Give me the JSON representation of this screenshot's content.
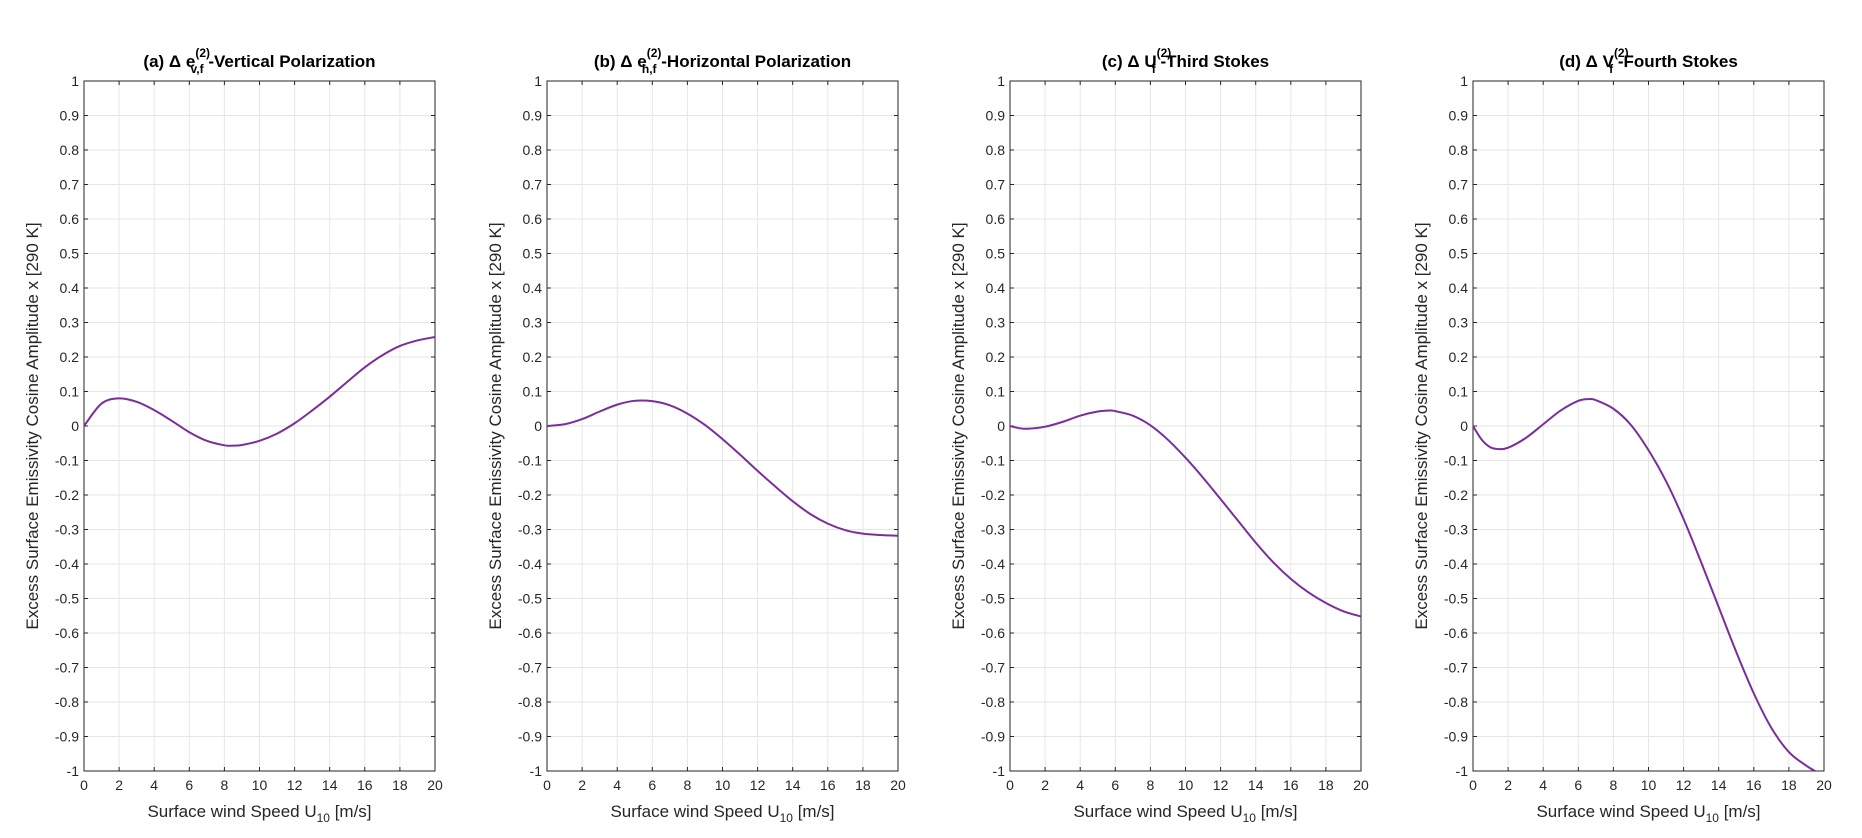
{
  "chart_data": [
    {
      "type": "line",
      "title": {
        "prefix": "(a) Δ e",
        "sup": "(2)",
        "sub": "v,f",
        "suffix": " -Vertical Polarization"
      },
      "xlabel": {
        "text": "Surface wind Speed U",
        "sub": "10",
        "unit": " [m/s]"
      },
      "ylabel": "Excess Surface Emissivity Cosine Amplitude x [290 K]",
      "xlim": [
        0,
        20
      ],
      "ylim": [
        -1,
        1
      ],
      "grid": true,
      "xticks": [
        "0",
        "2",
        "4",
        "6",
        "8",
        "10",
        "12",
        "14",
        "16",
        "18",
        "20"
      ],
      "yticks": [
        "1",
        "0.9",
        "0.8",
        "0.7",
        "0.6",
        "0.5",
        "0.4",
        "0.3",
        "0.2",
        "0.1",
        "0",
        "-0.1",
        "-0.2",
        "-0.3",
        "-0.4",
        "-0.5",
        "-0.6",
        "-0.7",
        "-0.8",
        "-0.9",
        "-1"
      ],
      "series": [
        {
          "x": [
            0,
            1,
            2,
            3,
            4,
            5,
            6,
            7,
            8,
            8.5,
            9,
            10,
            11,
            12,
            13,
            14,
            15,
            16,
            17,
            18,
            19,
            20
          ],
          "values": [
            0,
            0.065,
            0.08,
            0.07,
            0.046,
            0.015,
            -0.018,
            -0.043,
            -0.056,
            -0.057,
            -0.055,
            -0.043,
            -0.022,
            0.008,
            0.045,
            0.085,
            0.128,
            0.17,
            0.205,
            0.232,
            0.248,
            0.258
          ]
        }
      ]
    },
    {
      "type": "line",
      "title": {
        "prefix": "(b) Δ e",
        "sup": "(2)",
        "sub": "h,f",
        "suffix": " -Horizontal Polarization"
      },
      "xlabel": {
        "text": "Surface wind Speed U",
        "sub": "10",
        "unit": " [m/s]"
      },
      "ylabel": "Excess Surface Emissivity Cosine Amplitude x [290 K]",
      "xlim": [
        0,
        20
      ],
      "ylim": [
        -1,
        1
      ],
      "grid": true,
      "xticks": [
        "0",
        "2",
        "4",
        "6",
        "8",
        "10",
        "12",
        "14",
        "16",
        "18",
        "20"
      ],
      "yticks": [
        "1",
        "0.9",
        "0.8",
        "0.7",
        "0.6",
        "0.5",
        "0.4",
        "0.3",
        "0.2",
        "0.1",
        "0",
        "-0.1",
        "-0.2",
        "-0.3",
        "-0.4",
        "-0.5",
        "-0.6",
        "-0.7",
        "-0.8",
        "-0.9",
        "-1"
      ],
      "series": [
        {
          "x": [
            0,
            1,
            2,
            3,
            4,
            5,
            6,
            7,
            8,
            9,
            10,
            11,
            12,
            13,
            14,
            15,
            16,
            17,
            18,
            19,
            20
          ],
          "values": [
            0,
            0.005,
            0.02,
            0.042,
            0.062,
            0.073,
            0.072,
            0.06,
            0.036,
            0.003,
            -0.038,
            -0.083,
            -0.13,
            -0.175,
            -0.218,
            -0.255,
            -0.283,
            -0.302,
            -0.312,
            -0.316,
            -0.318
          ]
        }
      ]
    },
    {
      "type": "line",
      "title": {
        "prefix": "(c) Δ U",
        "sup": "(2)",
        "sub": "f",
        "suffix": " -Third Stokes"
      },
      "xlabel": {
        "text": "Surface wind Speed U",
        "sub": "10",
        "unit": " [m/s]"
      },
      "ylabel": "Excess Surface Emissivity Cosine Amplitude x [290 K]",
      "xlim": [
        0,
        20
      ],
      "ylim": [
        -1,
        1
      ],
      "grid": true,
      "xticks": [
        "0",
        "2",
        "4",
        "6",
        "8",
        "10",
        "12",
        "14",
        "16",
        "18",
        "20"
      ],
      "yticks": [
        "1",
        "0.9",
        "0.8",
        "0.7",
        "0.6",
        "0.5",
        "0.4",
        "0.3",
        "0.2",
        "0.1",
        "0",
        "-0.1",
        "-0.2",
        "-0.3",
        "-0.4",
        "-0.5",
        "-0.6",
        "-0.7",
        "-0.8",
        "-0.9",
        "-1"
      ],
      "series": [
        {
          "x": [
            0,
            0.5,
            1,
            2,
            3,
            4,
            5,
            5.7,
            6,
            7,
            8,
            9,
            10,
            11,
            12,
            13,
            14,
            15,
            16,
            17,
            18,
            19,
            20
          ],
          "values": [
            0,
            -0.006,
            -0.008,
            -0.002,
            0.012,
            0.03,
            0.042,
            0.045,
            0.043,
            0.03,
            0.002,
            -0.04,
            -0.092,
            -0.15,
            -0.212,
            -0.275,
            -0.338,
            -0.395,
            -0.443,
            -0.482,
            -0.513,
            -0.537,
            -0.552
          ]
        }
      ]
    },
    {
      "type": "line",
      "title": {
        "prefix": "(d) Δ V",
        "sup": "(2)",
        "sub": "f",
        "suffix": " -Fourth Stokes"
      },
      "xlabel": {
        "text": "Surface wind Speed U",
        "sub": "10",
        "unit": " [m/s]"
      },
      "ylabel": "Excess Surface Emissivity Cosine Amplitude x [290 K]",
      "xlim": [
        0,
        20
      ],
      "ylim": [
        -1,
        1
      ],
      "grid": true,
      "xticks": [
        "0",
        "2",
        "4",
        "6",
        "8",
        "10",
        "12",
        "14",
        "16",
        "18",
        "20"
      ],
      "yticks": [
        "1",
        "0.9",
        "0.8",
        "0.7",
        "0.6",
        "0.5",
        "0.4",
        "0.3",
        "0.2",
        "0.1",
        "0",
        "-0.1",
        "-0.2",
        "-0.3",
        "-0.4",
        "-0.5",
        "-0.6",
        "-0.7",
        "-0.8",
        "-0.9",
        "-1"
      ],
      "series": [
        {
          "x": [
            0,
            0.5,
            1,
            1.5,
            2,
            3,
            4,
            5,
            6,
            6.6,
            7,
            8,
            9,
            10,
            11,
            12,
            13,
            14,
            15,
            16,
            17,
            18,
            19,
            19.5
          ],
          "values": [
            0,
            -0.04,
            -0.062,
            -0.067,
            -0.063,
            -0.035,
            0.005,
            0.045,
            0.073,
            0.078,
            0.075,
            0.05,
            0.003,
            -0.07,
            -0.16,
            -0.27,
            -0.395,
            -0.525,
            -0.655,
            -0.775,
            -0.875,
            -0.945,
            -0.985,
            -1.0
          ]
        }
      ]
    }
  ],
  "colors": {
    "curve": "#7B2D9C"
  }
}
